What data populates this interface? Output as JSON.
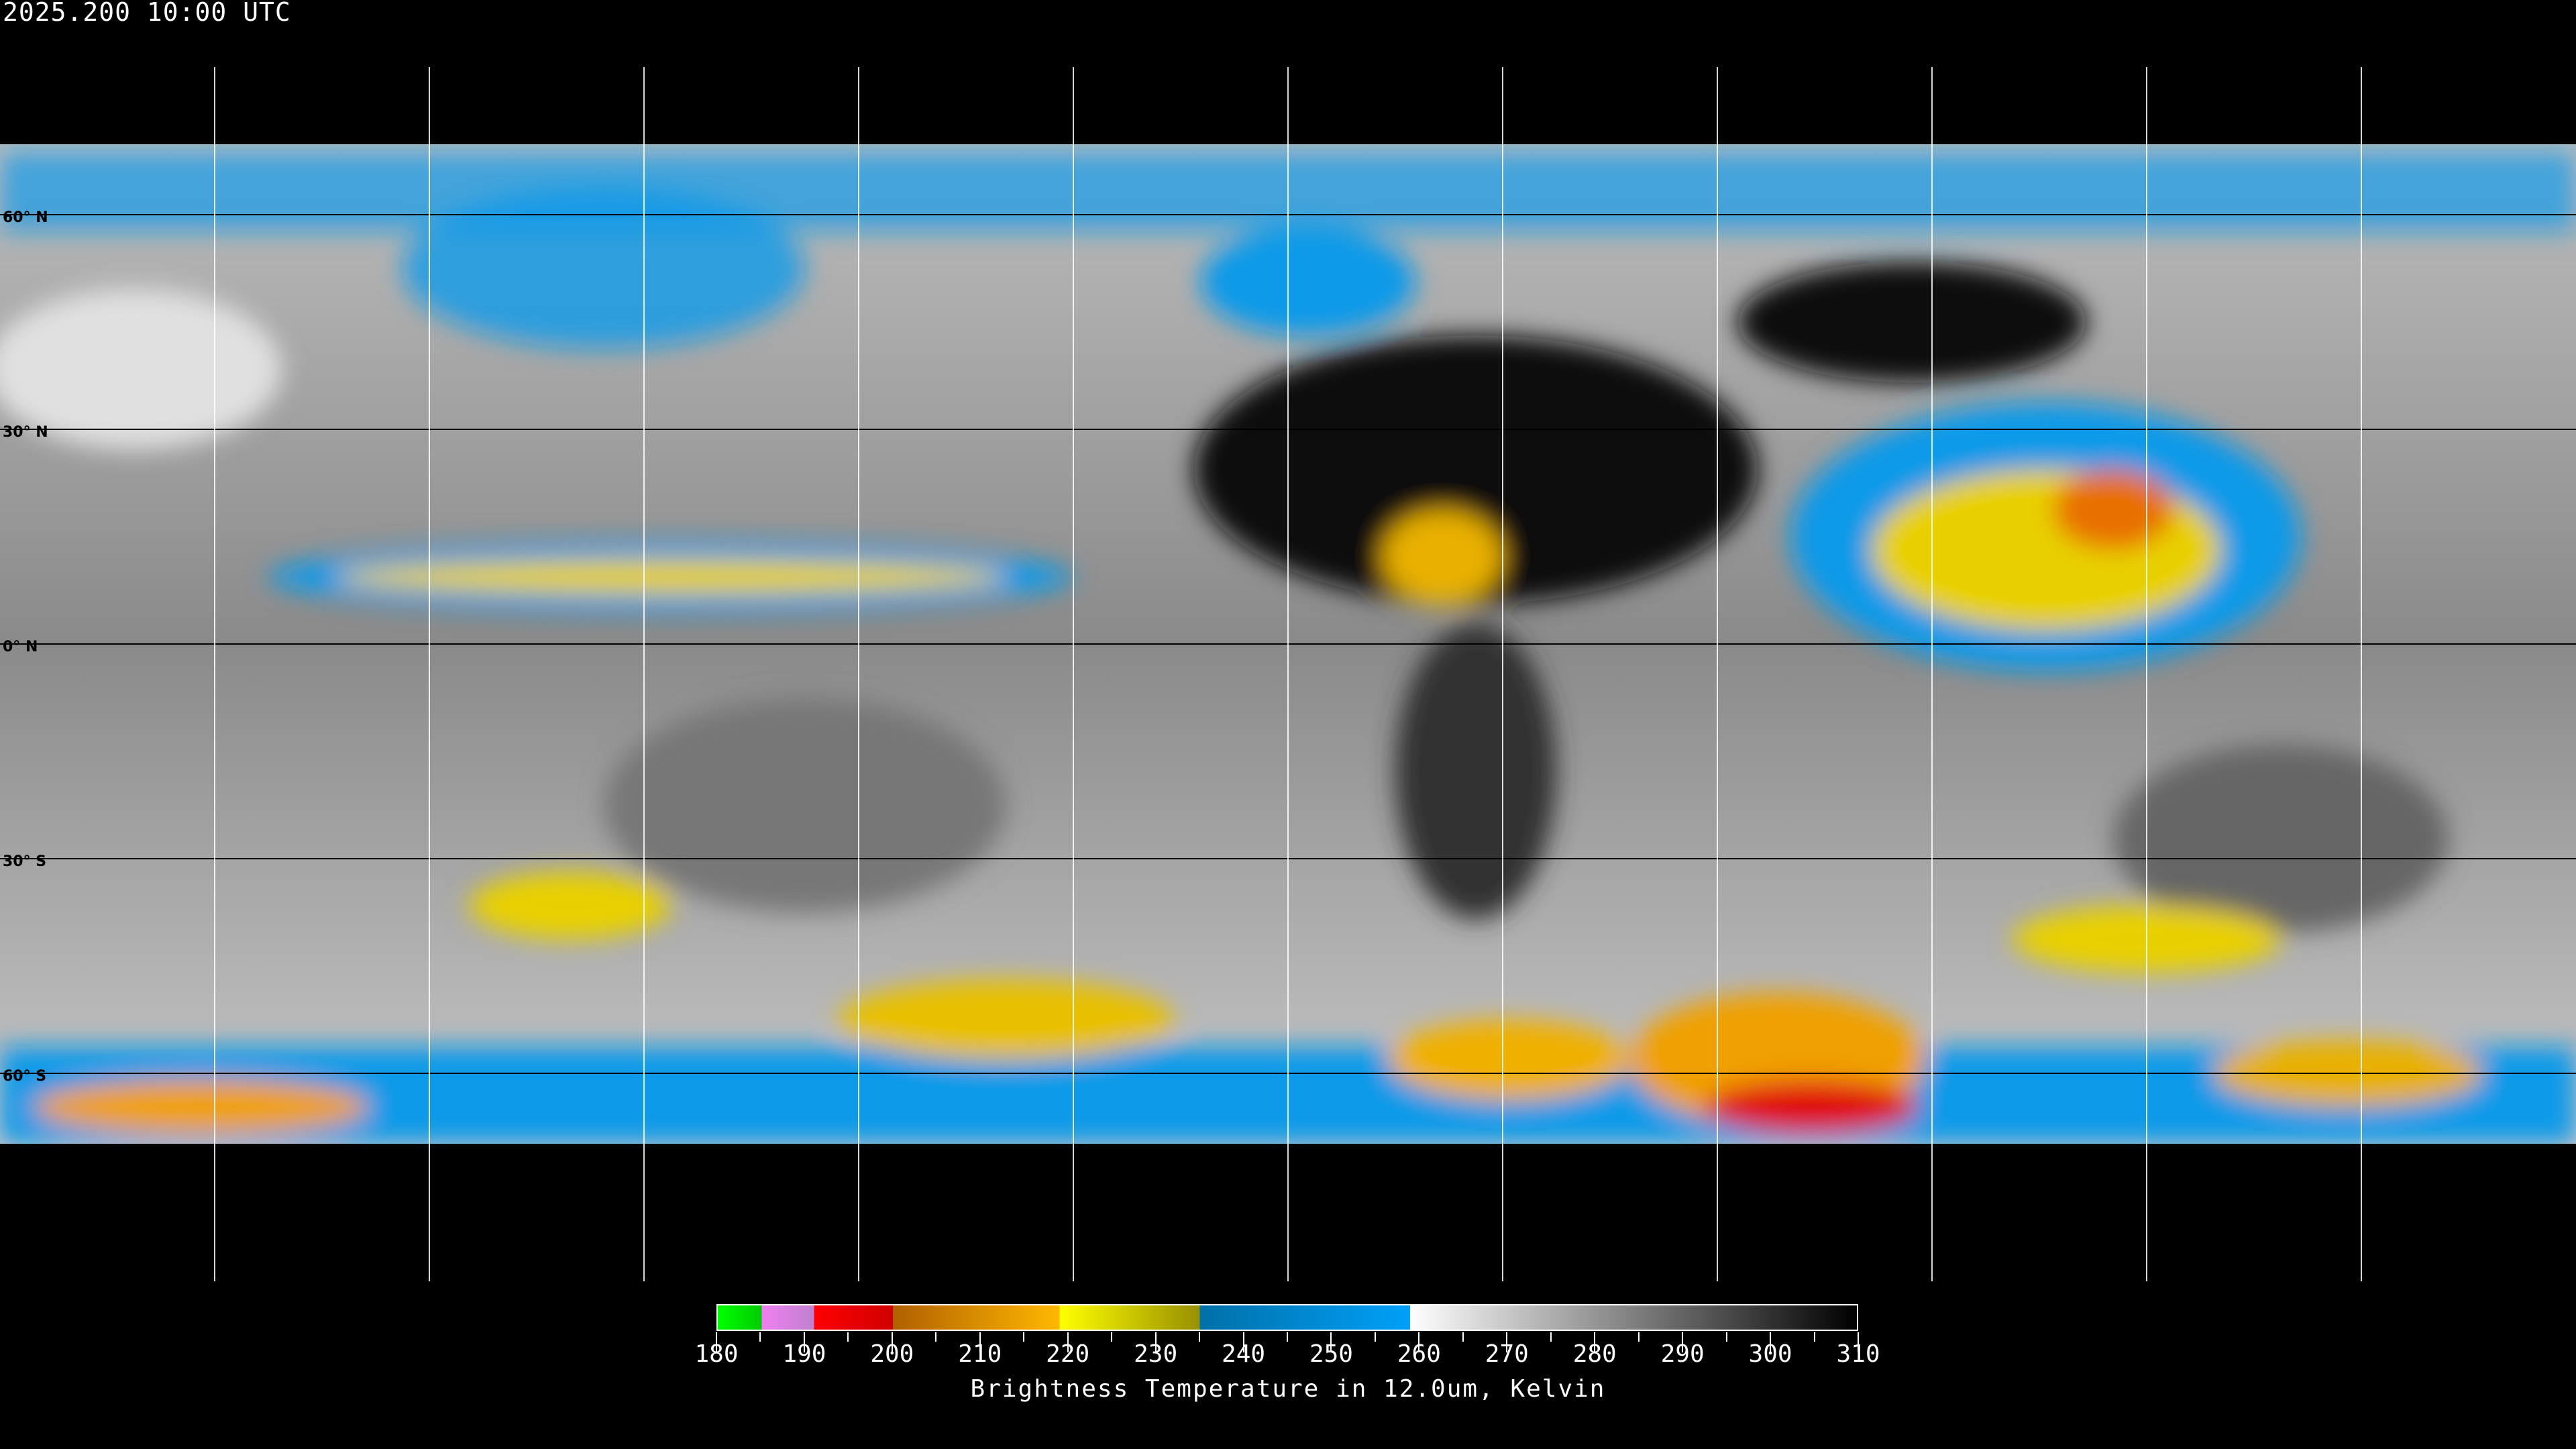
{
  "title": "2025.200 10:00 UTC",
  "latitude_labels": [
    "60° N",
    "30° N",
    "0° N",
    "30° S",
    "60° S"
  ],
  "colorbar": {
    "title": "Brightness Temperature in 12.0um, Kelvin",
    "min": 180,
    "max": 310,
    "tick_labels": [
      "180",
      "190",
      "200",
      "210",
      "220",
      "230",
      "240",
      "250",
      "260",
      "270",
      "280",
      "290",
      "300",
      "310"
    ],
    "segments": [
      {
        "from": 180,
        "to": 185,
        "colors": [
          "#00ff00",
          "#00cc00"
        ]
      },
      {
        "from": 185,
        "to": 191,
        "colors": [
          "#f080f0",
          "#c080d0"
        ]
      },
      {
        "from": 191,
        "to": 200,
        "colors": [
          "#ff0000",
          "#d00000"
        ]
      },
      {
        "from": 200,
        "to": 219,
        "colors": [
          "#b06000",
          "#ffb800"
        ]
      },
      {
        "from": 219,
        "to": 235,
        "colors": [
          "#ffff00",
          "#989000"
        ]
      },
      {
        "from": 235,
        "to": 259,
        "colors": [
          "#0070a8",
          "#00a0f8"
        ]
      },
      {
        "from": 259,
        "to": 310,
        "colors": [
          "#ffffff",
          "#000000"
        ]
      }
    ]
  },
  "map": {
    "projection": "equirectangular",
    "grid_spacing_deg": 30
  }
}
